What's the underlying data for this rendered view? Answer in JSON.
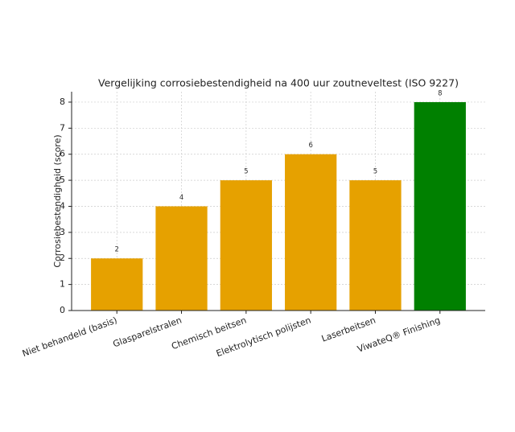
{
  "chart_data": {
    "type": "bar",
    "title": "Vergelijking corrosiebestendigheid na 400 uur zoutneveltest (ISO 9227)",
    "y_label": "Corrosiebestendigheid (score)",
    "categories": [
      "Niet behandeld (basis)",
      "Glasparelstralen",
      "Chemisch beitsen",
      "Elektrolytisch polijsten",
      "Laserbeitsen",
      "ViwateQ® Finishing"
    ],
    "values": [
      2,
      4,
      5,
      6,
      5,
      8
    ],
    "colors": [
      "#e6a100",
      "#e6a100",
      "#e6a100",
      "#e6a100",
      "#e6a100",
      "#008000"
    ],
    "ylim": [
      0,
      8.4
    ],
    "yticks": [
      0,
      1,
      2,
      3,
      4,
      5,
      6,
      7,
      8
    ],
    "grid": true
  }
}
